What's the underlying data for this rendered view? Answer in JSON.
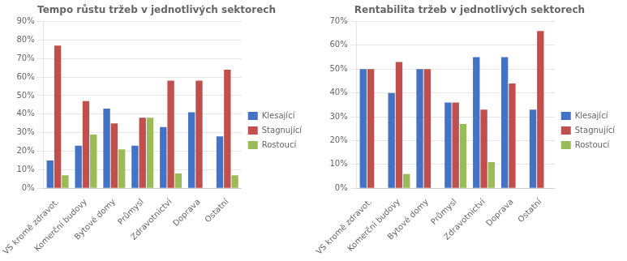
{
  "chart_data": [
    {
      "type": "bar",
      "title": "Tempo růstu tržeb v jednotlivých sektorech",
      "categories": [
        "VS kromě zdravot.",
        "Komerční budovy",
        "Bytové domy",
        "Průmysl",
        "Zdravotnictví",
        "Doprava",
        "Ostatní"
      ],
      "series": [
        {
          "name": "Klesající",
          "color": "#4472C4",
          "values": [
            0.15,
            0.23,
            0.43,
            0.23,
            0.33,
            0.41,
            0.28
          ]
        },
        {
          "name": "Stagnující",
          "color": "#C0504D",
          "values": [
            0.77,
            0.47,
            0.35,
            0.38,
            0.58,
            0.58,
            0.64
          ]
        },
        {
          "name": "Rostoucí",
          "color": "#9BBB59",
          "values": [
            0.07,
            0.29,
            0.21,
            0.38,
            0.08,
            0.0,
            0.07
          ]
        }
      ],
      "ylim": [
        0,
        0.9
      ],
      "yticks": [
        {
          "value": 0.0,
          "label": "0%"
        },
        {
          "value": 0.1,
          "label": "10%"
        },
        {
          "value": 0.2,
          "label": "20%"
        },
        {
          "value": 0.3,
          "label": "30%"
        },
        {
          "value": 0.4,
          "label": "40%"
        },
        {
          "value": 0.5,
          "label": "50%"
        },
        {
          "value": 0.6,
          "label": "60%"
        },
        {
          "value": 0.7,
          "label": "70%"
        },
        {
          "value": 0.8,
          "label": "80%"
        },
        {
          "value": 0.9,
          "label": "90%"
        }
      ],
      "grid": true,
      "legend": "right"
    },
    {
      "type": "bar",
      "title": "Rentabilita tržeb v jednotlivých sektorech",
      "categories": [
        "VS kromě zdravot.",
        "Komerční budovy",
        "Bytové domy",
        "Průmysl",
        "Zdravotnictví",
        "Doprava",
        "Ostatní"
      ],
      "series": [
        {
          "name": "Klesající",
          "color": "#4472C4",
          "values": [
            0.5,
            0.4,
            0.5,
            0.36,
            0.55,
            0.55,
            0.33
          ]
        },
        {
          "name": "Stagnující",
          "color": "#C0504D",
          "values": [
            0.5,
            0.53,
            0.5,
            0.36,
            0.33,
            0.44,
            0.66
          ]
        },
        {
          "name": "Rostoucí",
          "color": "#9BBB59",
          "values": [
            0.0,
            0.06,
            0.0,
            0.27,
            0.11,
            0.0,
            0.0
          ]
        }
      ],
      "ylim": [
        0,
        0.7
      ],
      "yticks": [
        {
          "value": 0.0,
          "label": "0%"
        },
        {
          "value": 0.1,
          "label": "10%"
        },
        {
          "value": 0.2,
          "label": "20%"
        },
        {
          "value": 0.3,
          "label": "30%"
        },
        {
          "value": 0.4,
          "label": "40%"
        },
        {
          "value": 0.5,
          "label": "50%"
        },
        {
          "value": 0.6,
          "label": "60%"
        },
        {
          "value": 0.7,
          "label": "70%"
        }
      ],
      "grid": true,
      "legend": "right"
    }
  ]
}
